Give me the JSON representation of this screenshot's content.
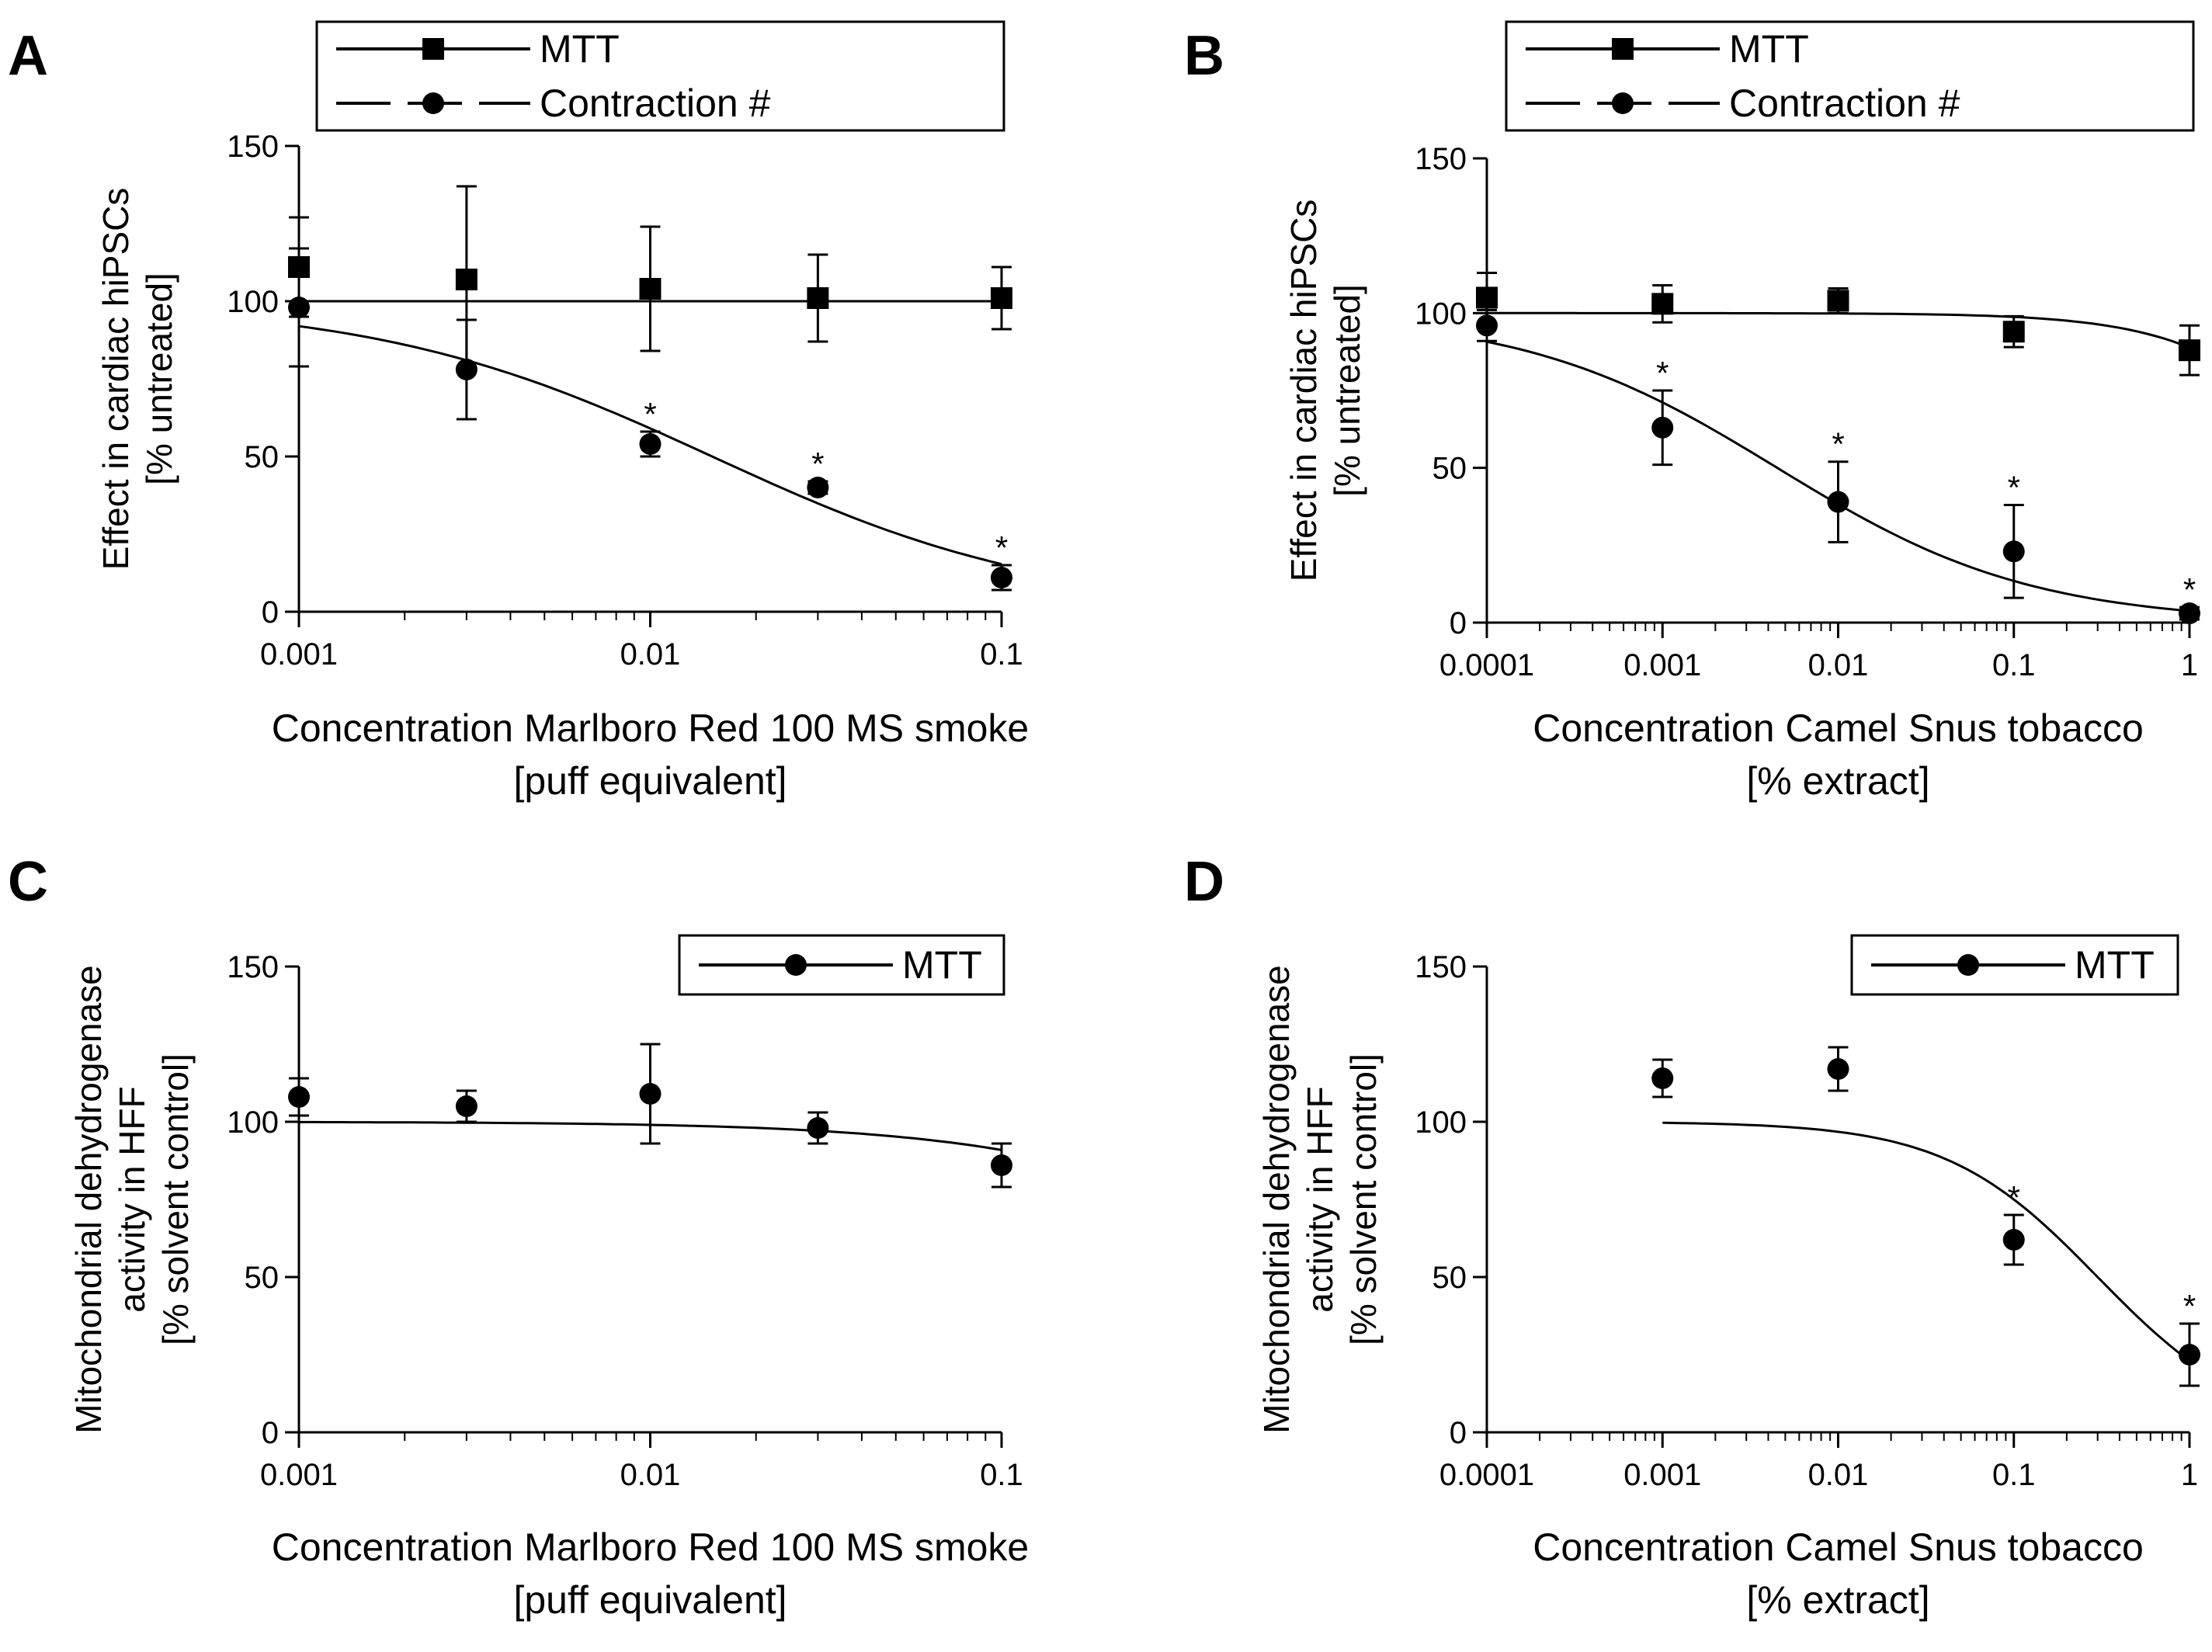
{
  "figure": {
    "panels": [
      "A",
      "B",
      "C",
      "D"
    ]
  },
  "chart_data": [
    {
      "panel": "A",
      "type": "scatter",
      "x_scale": "log",
      "xlim": [
        0.001,
        0.1
      ],
      "ylim": [
        0,
        150
      ],
      "x_ticks": [
        0.001,
        0.01,
        0.1
      ],
      "x_tick_labels": [
        "0.001",
        "0.01",
        "0.1"
      ],
      "y_ticks": [
        0,
        50,
        100,
        150
      ],
      "y_tick_labels": [
        "0",
        "50",
        "100",
        "150"
      ],
      "ylabel": [
        "Effect in cardiac hiPSCs",
        "[% untreated]"
      ],
      "xlabel": [
        "Concentration Marlboro  Red 100 MS  smoke",
        "[puff equivalent]"
      ],
      "legend": [
        {
          "label": "MTT",
          "marker": "square",
          "line": "solid"
        },
        {
          "label": "Contraction #",
          "marker": "circle",
          "line": "dashed"
        }
      ],
      "series": [
        {
          "name": "MTT",
          "marker": "square",
          "x": [
            0.001,
            0.003,
            0.01,
            0.03,
            0.1
          ],
          "y": [
            111,
            107,
            104,
            101,
            101
          ],
          "err": [
            16,
            30,
            20,
            14,
            10
          ],
          "sig": [
            false,
            false,
            false,
            false,
            false
          ],
          "fit": {
            "top": 100,
            "bottom": 100,
            "ec50": 1,
            "hill": 1,
            "xmin": 0.001,
            "xmax": 0.1
          }
        },
        {
          "name": "Contraction #",
          "marker": "circle",
          "x": [
            0.001,
            0.003,
            0.01,
            0.03,
            0.1
          ],
          "y": [
            98,
            78,
            54,
            40,
            11
          ],
          "err": [
            19,
            16,
            4,
            2,
            4
          ],
          "sig": [
            false,
            false,
            true,
            true,
            true
          ],
          "fit": {
            "top": 100,
            "bottom": 0,
            "ec50": 0.015,
            "hill": 0.9,
            "xmin": 0.001,
            "xmax": 0.1
          }
        }
      ]
    },
    {
      "panel": "B",
      "type": "scatter",
      "x_scale": "log",
      "xlim": [
        0.0001,
        1
      ],
      "ylim": [
        0,
        150
      ],
      "x_ticks": [
        0.0001,
        0.001,
        0.01,
        0.1,
        1
      ],
      "x_tick_labels": [
        "0.0001",
        "0.001",
        "0.01",
        "0.1",
        "1"
      ],
      "y_ticks": [
        0,
        50,
        100,
        150
      ],
      "y_tick_labels": [
        "0",
        "50",
        "100",
        "150"
      ],
      "ylabel": [
        "Effect in cardiac hiPSCs",
        "[% untreated]"
      ],
      "xlabel": [
        "Concentration Camel Snus tobacco",
        "[% extract]"
      ],
      "legend": [
        {
          "label": "MTT",
          "marker": "square",
          "line": "solid"
        },
        {
          "label": "Contraction #",
          "marker": "circle",
          "line": "dashed"
        }
      ],
      "series": [
        {
          "name": "MTT",
          "marker": "square",
          "x": [
            0.0001,
            0.001,
            0.01,
            0.1,
            1
          ],
          "y": [
            105,
            103,
            104,
            94,
            88
          ],
          "err": [
            8,
            6,
            4,
            5,
            8
          ],
          "sig": [
            false,
            false,
            false,
            false,
            false
          ],
          "fit": {
            "top": 100,
            "bottom": 0,
            "ec50": 8,
            "hill": 1,
            "xmin": 0.0001,
            "xmax": 1
          }
        },
        {
          "name": "Contraction #",
          "marker": "circle",
          "x": [
            0.0001,
            0.001,
            0.01,
            0.1,
            1
          ],
          "y": [
            96,
            63,
            39,
            23,
            3
          ],
          "err": [
            5,
            12,
            13,
            15,
            2
          ],
          "sig": [
            false,
            true,
            true,
            true,
            true
          ],
          "fit": {
            "top": 100,
            "bottom": 0,
            "ec50": 0.0045,
            "hill": 0.6,
            "xmin": 0.0001,
            "xmax": 1
          }
        }
      ]
    },
    {
      "panel": "C",
      "type": "scatter",
      "x_scale": "log",
      "xlim": [
        0.001,
        0.1
      ],
      "ylim": [
        0,
        150
      ],
      "x_ticks": [
        0.001,
        0.01,
        0.1
      ],
      "x_tick_labels": [
        "0.001",
        "0.01",
        "0.1"
      ],
      "y_ticks": [
        0,
        50,
        100,
        150
      ],
      "y_tick_labels": [
        "0",
        "50",
        "100",
        "150"
      ],
      "ylabel": [
        "Mitochondrial  dehydrogenase",
        "activity in HFF",
        "[% solvent control]"
      ],
      "xlabel": [
        "Concentration Marlboro  Red 100 MS  smoke",
        "[puff equivalent]"
      ],
      "legend": [
        {
          "label": "MTT",
          "marker": "circle",
          "line": "solid"
        }
      ],
      "series": [
        {
          "name": "MTT",
          "marker": "circle",
          "x": [
            0.001,
            0.003,
            0.01,
            0.03,
            0.1
          ],
          "y": [
            108,
            105,
            109,
            98,
            86
          ],
          "err": [
            6,
            5,
            16,
            5,
            7
          ],
          "sig": [
            false,
            false,
            false,
            false,
            false
          ],
          "fit": {
            "top": 100,
            "bottom": 0,
            "ec50": 1,
            "hill": 1,
            "xmin": 0.001,
            "xmax": 0.1
          }
        }
      ]
    },
    {
      "panel": "D",
      "type": "scatter",
      "x_scale": "log",
      "xlim": [
        0.0001,
        1
      ],
      "ylim": [
        0,
        150
      ],
      "x_ticks": [
        0.0001,
        0.001,
        0.01,
        0.1,
        1
      ],
      "x_tick_labels": [
        "0.0001",
        "0.001",
        "0.01",
        "0.1",
        "1"
      ],
      "y_ticks": [
        0,
        50,
        100,
        150
      ],
      "y_tick_labels": [
        "0",
        "50",
        "100",
        "150"
      ],
      "ylabel": [
        "Mitochondrial  dehydrogenase",
        "activity in HFF",
        "[% solvent control]"
      ],
      "xlabel": [
        "Concentration Camel Snus tobacco",
        "[% extract]"
      ],
      "legend": [
        {
          "label": "MTT",
          "marker": "circle",
          "line": "solid"
        }
      ],
      "series": [
        {
          "name": "MTT",
          "marker": "circle",
          "x": [
            0.001,
            0.01,
            0.1,
            1
          ],
          "y": [
            114,
            117,
            62,
            25
          ],
          "err": [
            6,
            7,
            8,
            10
          ],
          "sig": [
            false,
            false,
            true,
            true
          ],
          "fit": {
            "top": 100,
            "bottom": 0,
            "ec50": 0.3,
            "hill": 1,
            "xmin": 0.001,
            "xmax": 1
          }
        }
      ]
    }
  ]
}
